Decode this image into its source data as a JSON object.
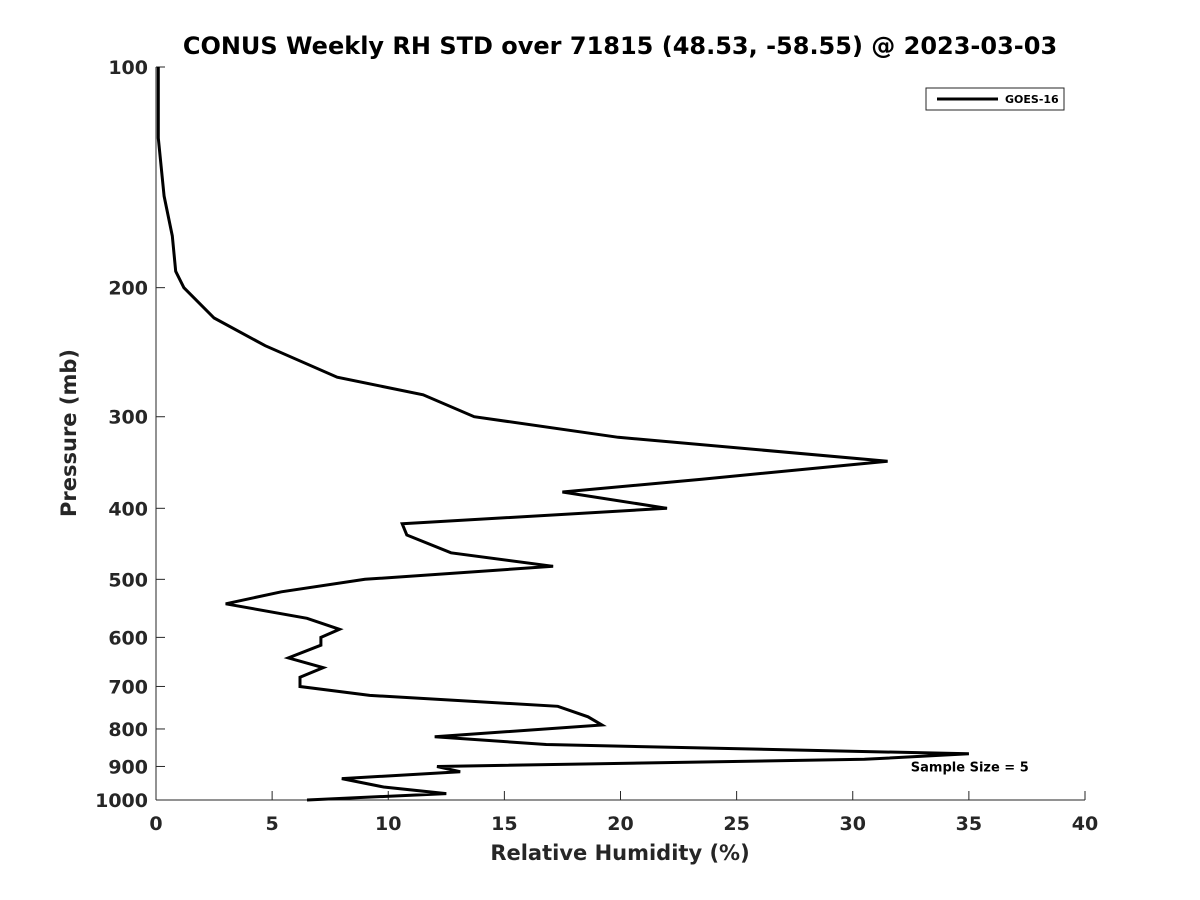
{
  "chart_data": {
    "type": "line",
    "title": "CONUS Weekly RH STD over 71815 (48.53, -58.55) @ 2023-03-03",
    "xlabel": "Relative Humidity (%)",
    "ylabel": "Pressure (mb)",
    "xlim": [
      0,
      40
    ],
    "ylim": [
      100,
      1000
    ],
    "yscale": "log",
    "y_reversed": true,
    "grid": false,
    "legend_position": "top-right",
    "x_ticks": [
      0,
      5,
      10,
      15,
      20,
      25,
      30,
      35,
      40
    ],
    "x_tick_labels": [
      "0",
      "5",
      "10",
      "15",
      "20",
      "25",
      "30",
      "35",
      "40"
    ],
    "y_ticks": [
      100,
      200,
      300,
      400,
      500,
      600,
      700,
      800,
      900,
      1000
    ],
    "y_tick_labels": [
      "100",
      "200",
      "300",
      "400",
      "500",
      "600",
      "700",
      "800",
      "900",
      "1000"
    ],
    "series": [
      {
        "name": "GOES-16",
        "color": "#000000",
        "points": [
          {
            "x": 0.1,
            "y": 100
          },
          {
            "x": 0.1,
            "y": 125
          },
          {
            "x": 0.35,
            "y": 150
          },
          {
            "x": 0.7,
            "y": 170
          },
          {
            "x": 0.85,
            "y": 190
          },
          {
            "x": 1.2,
            "y": 200
          },
          {
            "x": 2.5,
            "y": 220
          },
          {
            "x": 4.7,
            "y": 240
          },
          {
            "x": 7.8,
            "y": 265
          },
          {
            "x": 11.5,
            "y": 280
          },
          {
            "x": 13.7,
            "y": 300
          },
          {
            "x": 19.9,
            "y": 320
          },
          {
            "x": 31.5,
            "y": 345
          },
          {
            "x": 23.5,
            "y": 365
          },
          {
            "x": 17.5,
            "y": 380
          },
          {
            "x": 22.0,
            "y": 400
          },
          {
            "x": 10.6,
            "y": 420
          },
          {
            "x": 10.8,
            "y": 435
          },
          {
            "x": 12.7,
            "y": 460
          },
          {
            "x": 17.1,
            "y": 480
          },
          {
            "x": 9.0,
            "y": 500
          },
          {
            "x": 5.4,
            "y": 520
          },
          {
            "x": 3.0,
            "y": 540
          },
          {
            "x": 6.5,
            "y": 565
          },
          {
            "x": 7.9,
            "y": 585
          },
          {
            "x": 7.1,
            "y": 600
          },
          {
            "x": 7.1,
            "y": 615
          },
          {
            "x": 5.7,
            "y": 640
          },
          {
            "x": 7.2,
            "y": 660
          },
          {
            "x": 6.2,
            "y": 680
          },
          {
            "x": 6.2,
            "y": 700
          },
          {
            "x": 9.2,
            "y": 720
          },
          {
            "x": 17.3,
            "y": 745
          },
          {
            "x": 18.6,
            "y": 770
          },
          {
            "x": 19.2,
            "y": 790
          },
          {
            "x": 12.0,
            "y": 820
          },
          {
            "x": 16.8,
            "y": 840
          },
          {
            "x": 35.0,
            "y": 865
          },
          {
            "x": 30.5,
            "y": 880
          },
          {
            "x": 12.1,
            "y": 900
          },
          {
            "x": 13.1,
            "y": 915
          },
          {
            "x": 8.0,
            "y": 935
          },
          {
            "x": 9.8,
            "y": 960
          },
          {
            "x": 12.5,
            "y": 980
          },
          {
            "x": 6.5,
            "y": 1000
          }
        ]
      }
    ],
    "annotations": [
      {
        "text": "Sample Size = 5",
        "x": 32.5,
        "y": 900
      }
    ]
  }
}
